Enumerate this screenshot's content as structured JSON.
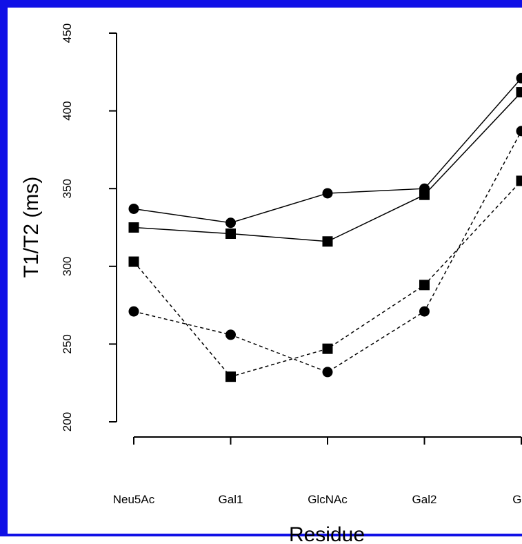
{
  "chart_data": {
    "type": "line",
    "xlabel": "Residue",
    "ylabel": "T1/T2 (ms)",
    "categories": [
      "Neu5Ac",
      "Gal1",
      "GlcNAc",
      "Gal2",
      "Glc"
    ],
    "ylim": [
      200,
      450
    ],
    "yticks": [
      200,
      250,
      300,
      350,
      400,
      450
    ],
    "grid": false,
    "series": [
      {
        "marker": "circle",
        "linestyle": "solid",
        "values": [
          337,
          328,
          347,
          350,
          421
        ]
      },
      {
        "marker": "square",
        "linestyle": "solid",
        "values": [
          325,
          321,
          316,
          346,
          412
        ]
      },
      {
        "marker": "square",
        "linestyle": "dashed",
        "values": [
          303,
          229,
          247,
          288,
          355
        ]
      },
      {
        "marker": "circle",
        "linestyle": "dashed",
        "values": [
          271,
          256,
          232,
          271,
          387
        ]
      }
    ]
  },
  "colors": {
    "frame": "#1010e6",
    "ink": "#000000",
    "background": "#ffffff"
  }
}
